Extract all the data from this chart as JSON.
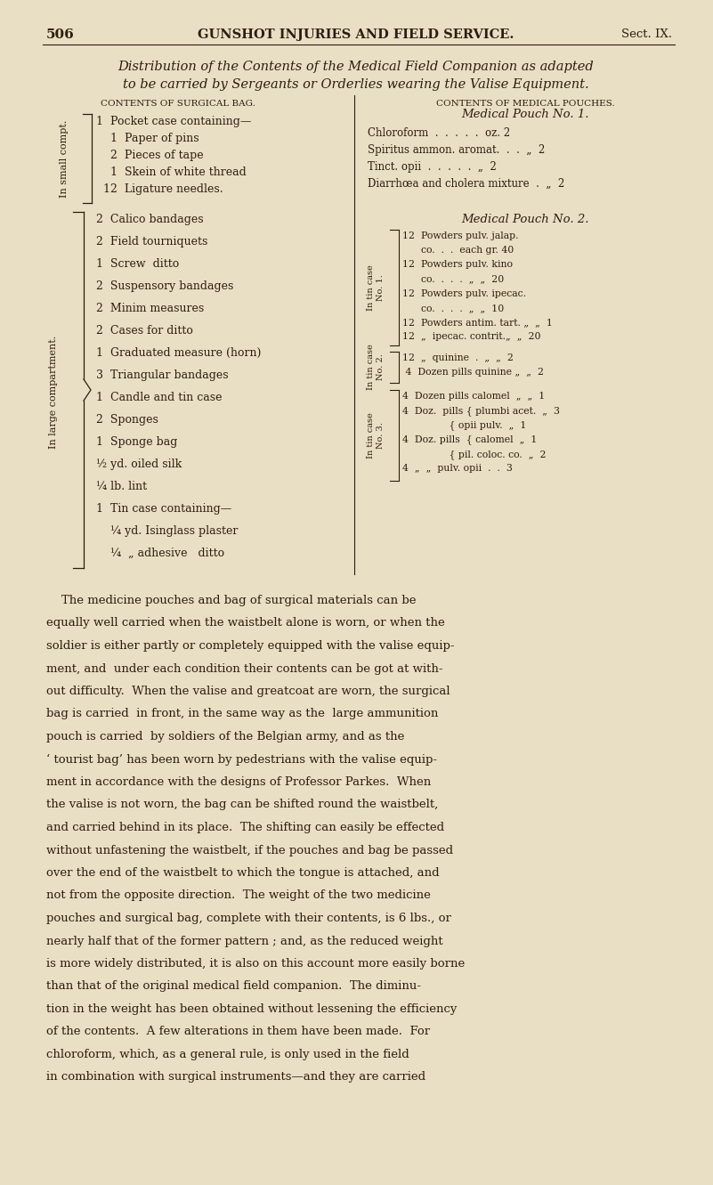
{
  "bg_color": "#e8dfc4",
  "text_color": "#2d1f0f",
  "page_number": "506",
  "header_center": "GUNSHOT INJURIES AND FIELD SERVICE.",
  "header_right": "Sect. IX.",
  "title_line1": "Distribution of the Contents of the Medical Field Companion as adapted",
  "title_line2": "to be carried by Sergeants or Orderlies wearing the Valise Equipment.",
  "col1_header": "CONTENTS OF SURGICAL BAG.",
  "col2_header": "CONTENTS OF MEDICAL POUCHES.",
  "small_compt_label": "In small compt.",
  "small_compt_items": [
    "1  Pocket case containing—",
    "    1  Paper of pins",
    "    2  Pieces of tape",
    "    1  Skein of white thread",
    "  12  Ligature needles."
  ],
  "large_compt_label": "In large compartment.",
  "large_compt_items": [
    "2  Calico bandages",
    "2  Field tourniquets",
    "1  Screw  ditto",
    "2  Suspensory bandages",
    "2  Minim measures",
    "2  Cases for ditto",
    "1  Graduated measure (horn)",
    "3  Triangular bandages",
    "1  Candle and tin case",
    "2  Sponges",
    "1  Sponge bag",
    "½ yd. oiled silk",
    "¼ lb. lint",
    "1  Tin case containing—",
    "    ¼ yd. Isinglass plaster",
    "    ¼  „ adhesive   ditto"
  ],
  "pouch1_header": "Medical Pouch No. 1.",
  "pouch1_items": [
    "Chloroform  .  .  .  .  .  oz. 2",
    "Spiritus ammon. aromat.  .  .  „  2",
    "Tinct. opii  .  .  .  .  .  „  2",
    "Diarrhœa and cholera mixture  .  „  2"
  ],
  "pouch2_header": "Medical Pouch No. 2.",
  "tin_case_1_label": "In tin case\nNo. 1.",
  "tin_case_1_items": [
    "12  Powders pulv. jalap.",
    "      co.  .  .  each gr. 40",
    "12  Powders pulv. kino",
    "      co.  .  .  .  „  „  20",
    "12  Powders pulv. ipecac.",
    "      co.  .  .  .  „  „  10",
    "12  Powders antim. tart. „  „  1",
    "12  „  ipecac. contrit.„  „  20"
  ],
  "tin_case_2_label": "In tin case\nNo. 2.",
  "tin_case_2_items": [
    "12  „  quinine  .  „  „  2",
    " 4  Dozen pills quinine „  „  2"
  ],
  "tin_case_3_label": "In tin case\nNo. 3.",
  "tin_case_3_items": [
    "4  Dozen pills calomel  „  „  1",
    "4  Doz.  pills { plumbi acet.  „  3",
    "               { opii pulv.  „  1",
    "4  Doz. pills  { calomel  „  1",
    "               { pil. coloc. co.  „  2",
    "4  „  „  pulv. opii  .  .  3"
  ],
  "body_text": [
    "    The medicine pouches and bag of surgical materials can be",
    "equally well carried when the waistbelt alone is worn, or when the",
    "soldier is either partly or completely equipped with the valise equip-",
    "ment, and  under each condition their contents can be got at with-",
    "out difficulty.  When the valise and greatcoat are worn, the surgical",
    "bag is carried  in front, in the same way as the  large ammunition",
    "pouch is carried  by soldiers of the Belgian army, and as the",
    "‘ tourist bag’ has been worn by pedestrians with the valise equip-",
    "ment in accordance with the designs of Professor Parkes.  When",
    "the valise is not worn, the bag can be shifted round the waistbelt,",
    "and carried behind in its place.  The shifting can easily be effected",
    "without unfastening the waistbelt, if the pouches and bag be passed",
    "over the end of the waistbelt to which the tongue is attached, and",
    "not from the opposite direction.  The weight of the two medicine",
    "pouches and surgical bag, complete with their contents, is 6 lbs., or",
    "nearly half that of the former pattern ; and, as the reduced weight",
    "is more widely distributed, it is also on this account more easily borne",
    "than that of the original medical field companion.  The diminu-",
    "tion in the weight has been obtained without lessening the efficiency",
    "of the contents.  A few alterations in them have been made.  For",
    "chloroform, which, as a general rule, is only used in the field",
    "in combination with surgical instruments—and they are carried"
  ]
}
